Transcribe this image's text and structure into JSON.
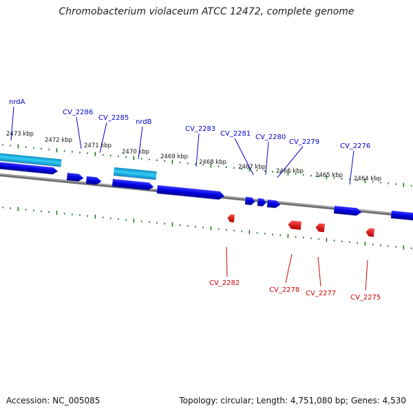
{
  "title": "Chromobacterium violaceum ATCC 12472, complete genome",
  "accession": "Accession: NC_005085",
  "topology": "Topology: circular; Length: 4,751,080 bp; Genes: 4,530",
  "colors": {
    "cds": "#0a0ad8",
    "rna": "#19b4e6",
    "reverse": "#ee1111",
    "backbone": "#808080",
    "tick": "#1e7a1e",
    "fwd_label": "#0000cc",
    "rev_label": "#cc0000"
  },
  "ruler": [
    {
      "label": "2473 kbp"
    },
    {
      "label": "2472 kbp"
    },
    {
      "label": "2471 kbp"
    },
    {
      "label": "2470 kbp"
    },
    {
      "label": "2469 kbp"
    },
    {
      "label": "2468 kbp"
    },
    {
      "label": "2467 kbp"
    },
    {
      "label": "2466 kbp"
    },
    {
      "label": "2465 kbp"
    },
    {
      "label": "2464 kbp"
    }
  ],
  "forward_labels": [
    {
      "name": "nrdA"
    },
    {
      "name": "CV_2286"
    },
    {
      "name": "CV_2285"
    },
    {
      "name": "nrdB"
    },
    {
      "name": "CV_2283"
    },
    {
      "name": "CV_2281"
    },
    {
      "name": "CV_2280"
    },
    {
      "name": "CV_2279"
    },
    {
      "name": "CV_2276"
    }
  ],
  "reverse_labels": [
    {
      "name": "CV_2282"
    },
    {
      "name": "CV_2278"
    },
    {
      "name": "CV_2277"
    },
    {
      "name": "CV_2275"
    }
  ]
}
